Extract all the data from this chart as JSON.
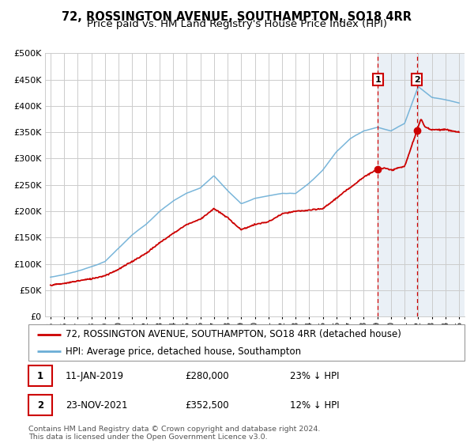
{
  "title": "72, ROSSINGTON AVENUE, SOUTHAMPTON, SO18 4RR",
  "subtitle": "Price paid vs. HM Land Registry's House Price Index (HPI)",
  "ylim": [
    0,
    500000
  ],
  "yticks": [
    0,
    50000,
    100000,
    150000,
    200000,
    250000,
    300000,
    350000,
    400000,
    450000,
    500000
  ],
  "xlim_start": 1994.6,
  "xlim_end": 2025.4,
  "sale1_date": 2019.03,
  "sale1_price": 280000,
  "sale2_date": 2021.9,
  "sale2_price": 352500,
  "legend_line1": "72, ROSSINGTON AVENUE, SOUTHAMPTON, SO18 4RR (detached house)",
  "legend_line2": "HPI: Average price, detached house, Southampton",
  "table_row1_date": "11-JAN-2019",
  "table_row1_price": "£280,000",
  "table_row1_hpi": "23% ↓ HPI",
  "table_row2_date": "23-NOV-2021",
  "table_row2_price": "£352,500",
  "table_row2_hpi": "12% ↓ HPI",
  "footnote": "Contains HM Land Registry data © Crown copyright and database right 2024.\nThis data is licensed under the Open Government Licence v3.0.",
  "hpi_color": "#6baed6",
  "price_color": "#cc0000",
  "dashed_color": "#cc0000",
  "bg_highlight_color": "#dce6f1",
  "grid_color": "#cccccc",
  "title_fontsize": 10.5,
  "subtitle_fontsize": 9.5,
  "tick_fontsize": 8,
  "legend_fontsize": 8.5,
  "hpi_key_years": [
    1995,
    1996,
    1997,
    1998,
    1999,
    2000,
    2001,
    2002,
    2003,
    2004,
    2005,
    2006,
    2007,
    2008,
    2009,
    2010,
    2011,
    2012,
    2013,
    2014,
    2015,
    2016,
    2017,
    2018,
    2019,
    2020,
    2021,
    2022,
    2023,
    2024,
    2025
  ],
  "hpi_key_values": [
    75000,
    80000,
    87000,
    95000,
    105000,
    130000,
    155000,
    175000,
    200000,
    220000,
    235000,
    245000,
    268000,
    240000,
    215000,
    225000,
    230000,
    235000,
    235000,
    255000,
    280000,
    315000,
    340000,
    355000,
    362000,
    355000,
    370000,
    440000,
    420000,
    415000,
    408000
  ],
  "price_key_years": [
    1995,
    1996,
    1997,
    1998,
    1999,
    2000,
    2001,
    2002,
    2003,
    2004,
    2005,
    2006,
    2007,
    2008,
    2009,
    2010,
    2011,
    2012,
    2013,
    2014,
    2015,
    2016,
    2017,
    2018,
    2019.03,
    2019.5,
    2020,
    2020.5,
    2021,
    2021.9,
    2022.2,
    2022.5,
    2023,
    2024,
    2025
  ],
  "price_key_values": [
    60000,
    63000,
    68000,
    72000,
    78000,
    90000,
    105000,
    120000,
    140000,
    158000,
    175000,
    185000,
    205000,
    188000,
    165000,
    175000,
    180000,
    195000,
    200000,
    202000,
    205000,
    225000,
    245000,
    265000,
    280000,
    282000,
    278000,
    282000,
    285000,
    352500,
    375000,
    360000,
    355000,
    355000,
    350000
  ]
}
